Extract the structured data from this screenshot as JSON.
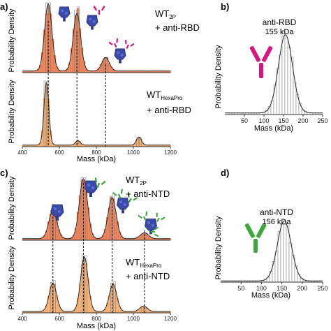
{
  "colors": {
    "red_fill": "#ec8a62",
    "red_stroke": "#d4572c",
    "orange_fill": "#f7b880",
    "orange_stroke": "#e58a3a",
    "fit_line": "#2a2a2a",
    "histogram_outline": "#777777",
    "spike_blue": "#3b4aa8",
    "antibody_magenta": "#d8157f",
    "antibody_green": "#3aa83a"
  },
  "panels": {
    "a": {
      "label": "a)"
    },
    "b": {
      "label": "b)"
    },
    "c": {
      "label": "c)"
    },
    "d": {
      "label": "d)"
    }
  },
  "chart_data": [
    {
      "id": "a-top",
      "type": "area",
      "panel": "a",
      "ylabel": "Probability Density",
      "annotation": {
        "main": "WT",
        "sub": "2P",
        "line2": "+ anti-RBD"
      },
      "xlim": [
        400,
        1200
      ],
      "series": [
        {
          "color": "#ec8a62",
          "peaks": [
            {
              "mass": 540,
              "height": 1.0
            },
            {
              "mass": 695,
              "height": 0.86
            },
            {
              "mass": 850,
              "height": 0.2
            }
          ]
        }
      ],
      "icons": [
        "spike",
        "spike+1 antibody",
        "spike+2 antibodies"
      ]
    },
    {
      "id": "a-bottom",
      "type": "area",
      "panel": "a",
      "ylabel": "Probability Density",
      "annotation": {
        "main": "WT",
        "sub": "HexaPro",
        "line2": "+ anti-RBD"
      },
      "xlim": [
        400,
        1200
      ],
      "xticks": [
        400,
        600,
        800,
        1000,
        1200
      ],
      "xlabel": "Mass (kDa)",
      "series": [
        {
          "color": "#f7b880",
          "peaks": [
            {
              "mass": 530,
              "height": 1.0
            },
            {
              "mass": 700,
              "height": 0.07
            },
            {
              "mass": 1030,
              "height": 0.13
            }
          ]
        }
      ]
    },
    {
      "id": "b",
      "type": "bar",
      "panel": "b",
      "title": "anti-RBD",
      "subtitle": "155 kDa",
      "xlim": [
        0,
        250
      ],
      "xticks": [
        "50",
        "100",
        "150",
        "200",
        "250"
      ],
      "xlabel": "Mass (kDa)",
      "ylabel": "Probability Density",
      "series": [
        {
          "peak_mass": 155,
          "width": 18
        }
      ]
    },
    {
      "id": "c-top",
      "type": "area",
      "panel": "c",
      "ylabel": "Probability Density",
      "annotation": {
        "main": "WT",
        "sub": "2P",
        "line2": "+ anti-NTD"
      },
      "xlim": [
        400,
        1200
      ],
      "series": [
        {
          "color": "#ec8a62",
          "peaks": [
            {
              "mass": 565,
              "height": 0.46
            },
            {
              "mass": 730,
              "height": 1.0
            },
            {
              "mass": 885,
              "height": 0.68
            },
            {
              "mass": 1060,
              "height": 0.1
            }
          ]
        }
      ],
      "icons": [
        "spike",
        "spike+1 antibody",
        "spike+2 antibodies",
        "spike+3 antibodies"
      ]
    },
    {
      "id": "c-bottom",
      "type": "area",
      "panel": "c",
      "ylabel": "Probability Density",
      "annotation": {
        "main": "WT",
        "sub": "HexaPro",
        "line2": "+ anti-NTD"
      },
      "xlim": [
        400,
        1200
      ],
      "xticks": [
        400,
        600,
        800,
        1000,
        1200
      ],
      "xlabel": "Mass (kDa)",
      "series": [
        {
          "color": "#f7b880",
          "peaks": [
            {
              "mass": 565,
              "height": 0.52
            },
            {
              "mass": 735,
              "height": 1.0
            },
            {
              "mass": 890,
              "height": 0.5
            },
            {
              "mass": 1055,
              "height": 0.1
            }
          ]
        }
      ]
    },
    {
      "id": "d",
      "type": "bar",
      "panel": "d",
      "title": "anti-NTD",
      "subtitle": "156 kDa",
      "xlim": [
        0,
        250
      ],
      "xticks": [
        "50",
        "100",
        "150",
        "200",
        "250"
      ],
      "xlabel": "Mass (kDa)",
      "ylabel": "Probability Density",
      "series": [
        {
          "peak_mass": 156,
          "width": 17
        }
      ]
    }
  ]
}
